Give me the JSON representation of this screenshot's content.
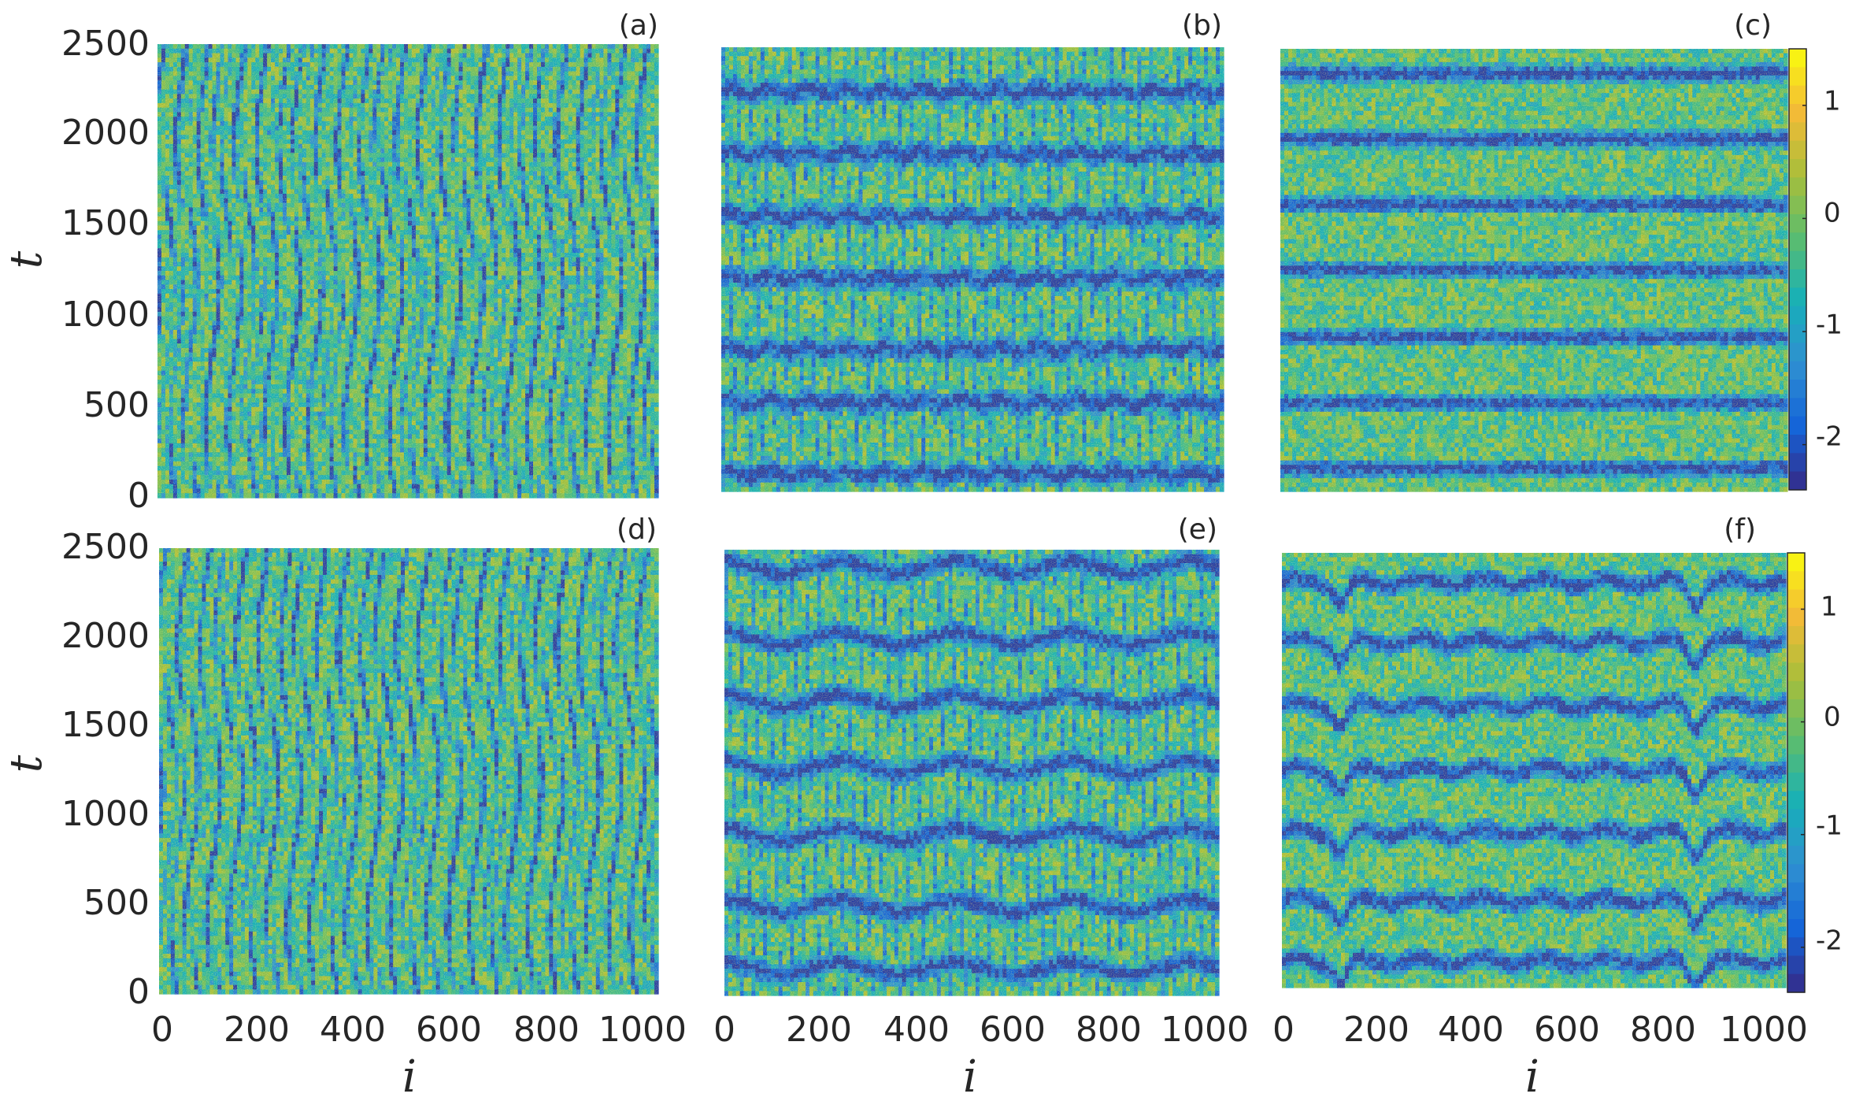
{
  "chart_data": [
    {
      "type": "heatmap",
      "panel_label": "(a)",
      "x_tick_labels": [],
      "y_tick_labels": [
        "0",
        "500",
        "1000",
        "1500",
        "2000",
        "2500"
      ],
      "xlabel": "",
      "ylabel": "t",
      "xlim": [
        0,
        1024
      ],
      "ylim": [
        0,
        2500
      ],
      "pattern": "disordered"
    },
    {
      "type": "heatmap",
      "panel_label": "(b)",
      "x_tick_labels": [],
      "y_tick_labels": [],
      "xlabel": "",
      "ylabel": "",
      "xlim": [
        0,
        1024
      ],
      "ylim": [
        0,
        2500
      ],
      "pattern": "weak-bands",
      "dark_band_t": [
        100,
        500,
        800,
        1200,
        1550,
        1900,
        2250
      ]
    },
    {
      "type": "heatmap",
      "panel_label": "(c)",
      "x_tick_labels": [],
      "y_tick_labels": [],
      "xlabel": "",
      "ylabel": "",
      "xlim": [
        0,
        1024
      ],
      "ylim": [
        0,
        2500
      ],
      "pattern": "flat-bands",
      "dark_band_t": [
        130,
        500,
        870,
        1250,
        1620,
        1990,
        2360
      ],
      "colorbar": {
        "ticks": [
          "1",
          "0",
          "-1",
          "-2"
        ],
        "tick_values": [
          1,
          0,
          -1,
          -2
        ],
        "range": [
          -2.4,
          1.5
        ]
      }
    },
    {
      "type": "heatmap",
      "panel_label": "(d)",
      "x_tick_labels": [
        "0",
        "200",
        "400",
        "600",
        "800",
        "1000"
      ],
      "y_tick_labels": [
        "0",
        "500",
        "1000",
        "1500",
        "2000",
        "2500"
      ],
      "xlabel": "i",
      "ylabel": "t",
      "xlim": [
        0,
        1024
      ],
      "ylim": [
        0,
        2500
      ],
      "pattern": "disordered"
    },
    {
      "type": "heatmap",
      "panel_label": "(e)",
      "x_tick_labels": [
        "0",
        "200",
        "400",
        "600",
        "800",
        "1000"
      ],
      "y_tick_labels": [],
      "xlabel": "i",
      "ylabel": "",
      "xlim": [
        0,
        1024
      ],
      "ylim": [
        0,
        2500
      ],
      "pattern": "zigzag-bands",
      "dark_band_t": [
        150,
        500,
        900,
        1280,
        1650,
        2000,
        2400
      ]
    },
    {
      "type": "heatmap",
      "panel_label": "(f)",
      "x_tick_labels": [
        "0",
        "200",
        "400",
        "600",
        "800",
        "1000"
      ],
      "y_tick_labels": [],
      "xlabel": "i",
      "ylabel": "",
      "xlim": [
        0,
        1024
      ],
      "ylim": [
        0,
        2500
      ],
      "pattern": "wavy-bands",
      "dark_band_t": [
        150,
        500,
        890,
        1250,
        1620,
        1990,
        2330
      ],
      "defects_i": [
        120,
        840
      ],
      "colorbar": {
        "ticks": [
          "1",
          "0",
          "-1",
          "-2"
        ],
        "tick_values": [
          1,
          0,
          -1,
          -2
        ],
        "range": [
          -2.4,
          1.5
        ]
      }
    }
  ],
  "colormap": [
    "#352a87",
    "#1464d8",
    "#2f8fd1",
    "#17b0b8",
    "#5bbd6e",
    "#a9be3a",
    "#f4bb37",
    "#f9fb0e"
  ]
}
